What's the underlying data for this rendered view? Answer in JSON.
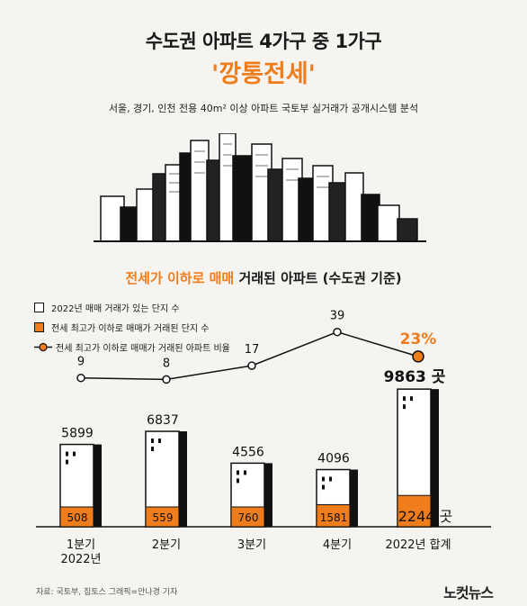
{
  "header": {
    "title_line1": "수도권 아파트 4가구 중 1가구",
    "title_line2": "'깡통전세'",
    "subtitle": "서울, 경기, 인천 전용 40m² 이상 아파트 국토부 실거래가 공개시스템 분석"
  },
  "section": {
    "title_highlight": "전세가 이하로 매매",
    "title_rest": " 거래된 아파트 (수도권 기준)"
  },
  "legend": {
    "item1": "2022년 매매 거래가 있는 단지 수",
    "item2": "전세 최고가 이하로 매매가 거래된 단지 수",
    "item3": "전세 최고가 이하로 매매가 거래된 아파트 비율"
  },
  "colors": {
    "accent": "#f07d1c",
    "ink": "#111111",
    "background": "#f6f4f1"
  },
  "chart_data": {
    "type": "bar",
    "categories": [
      "1분기\n2022년",
      "2분기",
      "3분기",
      "4분기",
      "2022년 합계"
    ],
    "series": [
      {
        "name": "2022년 매매 거래가 있는 단지 수",
        "values": [
          5899,
          6837,
          4556,
          4096,
          9863
        ],
        "color": "#ffffff"
      },
      {
        "name": "전세 최고가 이하로 매매가 거래된 단지 수",
        "values": [
          508,
          559,
          760,
          1581,
          2244
        ],
        "color": "#f07d1c"
      }
    ],
    "line_series": {
      "name": "전세 최고가 이하로 매매가 거래된 아파트 비율",
      "values": [
        9,
        8,
        17,
        39,
        23
      ],
      "labels": [
        "9",
        "8",
        "17",
        "39",
        "23%"
      ]
    },
    "total_unit": "곳",
    "title": "전세가 이하로 매매 거래된 아파트 (수도권 기준)"
  },
  "footer": {
    "source": "자료: 국토부, 집토스    그래픽=안나경 기자",
    "logo": "노컷뉴스"
  }
}
